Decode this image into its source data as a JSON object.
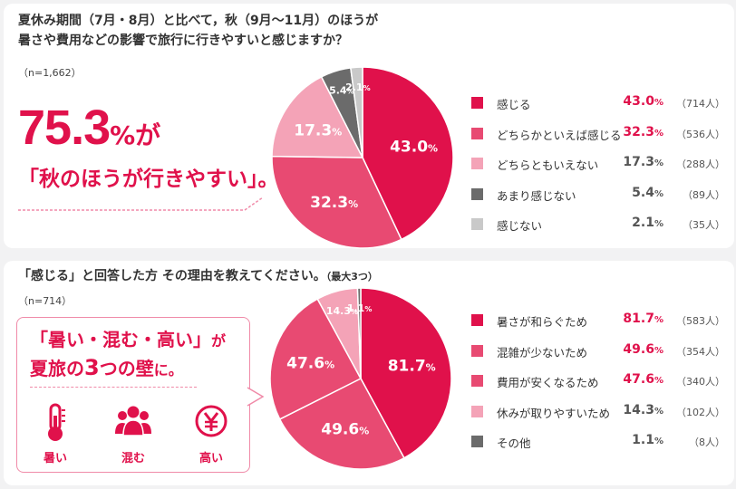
{
  "colors": {
    "accent": "#e0114b",
    "c1": "#e0114b",
    "c2": "#e84a72",
    "c3": "#f4a3b7",
    "c4": "#6b6b6b",
    "c5": "#c9c9c9"
  },
  "section1": {
    "title_line1": "夏休み期間（7月・8月）と比べて，秋（9月〜11月）のほうが",
    "title_line2": "暑さや費用などの影響で旅行に行きやすいと感じますか？",
    "n": "（n=1,662）",
    "headline_number": "75.3",
    "headline_pct": "%",
    "headline_ga": "が",
    "headline_sub": "「秋のほうが行きやすい」。"
  },
  "section2": {
    "title": "「感じる」と回答した方 その理由を教えてください。",
    "title_paren": "（最大3つ）",
    "n": "（n=714）",
    "callout_l1": "「暑い・混む・高い」",
    "callout_l1_ga": "が",
    "callout_l2_a": "夏旅の",
    "callout_l2_b": "3",
    "callout_l2_c": "つの壁",
    "callout_l2_d": "に。",
    "icons": [
      {
        "name": "thermometer-icon",
        "label": "暑い"
      },
      {
        "name": "crowd-icon",
        "label": "混む"
      },
      {
        "name": "yen-icon",
        "label": "高い"
      }
    ]
  },
  "chart_data": [
    {
      "type": "pie",
      "title": "夏休み期間（7月・8月）と比べて，秋（9月〜11月）のほうが暑さや費用などの影響で旅行に行きやすいと感じますか？",
      "categories": [
        "感じる",
        "どちらかといえば感じる",
        "どちらともいえない",
        "あまり感じない",
        "感じない"
      ],
      "values": [
        43.0,
        32.3,
        17.3,
        5.4,
        2.1
      ],
      "counts": [
        "（714人）",
        "（536人）",
        "（288人）",
        "（89人）",
        "（35人）"
      ],
      "colors": [
        "#e0114b",
        "#e84a72",
        "#f4a3b7",
        "#6b6b6b",
        "#c9c9c9"
      ],
      "value_colors": [
        "#e0114b",
        "#e0114b",
        "#555555",
        "#555555",
        "#555555"
      ],
      "legend": "right"
    },
    {
      "type": "bar",
      "title": "「感じる」と回答した方 その理由を教えてください。（最大3つ）",
      "categories": [
        "暑さが和らぐため",
        "混雑が少ないため",
        "費用が安くなるため",
        "休みが取りやすいため",
        "その他"
      ],
      "values": [
        81.7,
        49.6,
        47.6,
        14.3,
        1.1
      ],
      "counts": [
        "（583人）",
        "（354人）",
        "（340人）",
        "（102人）",
        "（8人）"
      ],
      "colors": [
        "#e0114b",
        "#e84a72",
        "#e84a72",
        "#f4a3b7",
        "#6b6b6b"
      ],
      "value_colors": [
        "#e0114b",
        "#e0114b",
        "#e0114b",
        "#555555",
        "#555555"
      ],
      "legend": "right"
    }
  ]
}
